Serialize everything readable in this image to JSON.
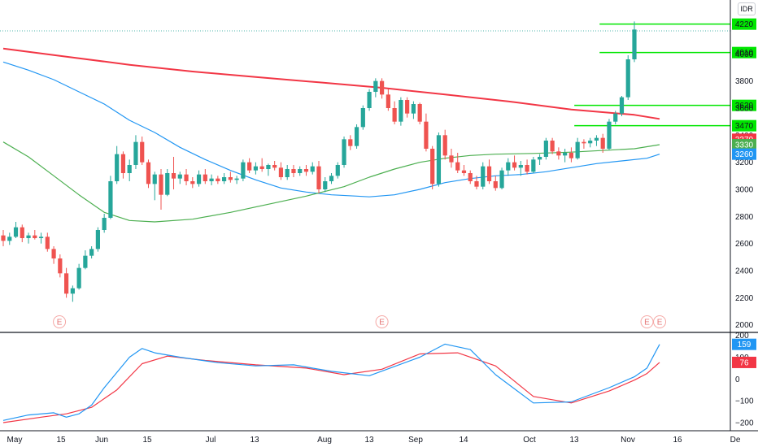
{
  "currency": "IDR",
  "colors": {
    "up": "#26a69a",
    "down": "#ef5350",
    "ma_long": "#f23645",
    "ma_mid": "#4caf50",
    "ma_short": "#2196f3",
    "levels": "#00e600",
    "osc_fast": "#2196f3",
    "osc_slow": "#f23645"
  },
  "chart_data": [
    {
      "type": "candlestick",
      "title": "",
      "ylim": [
        1950,
        4350
      ],
      "y_ticks": [
        2000,
        2200,
        2400,
        2600,
        2800,
        3000,
        3200,
        3400,
        3600,
        3800,
        4000
      ],
      "x_ticks": [
        "May",
        "15",
        "Jun",
        "15",
        "Jul",
        "13",
        "Aug",
        "13",
        "Sep",
        "14",
        "Oct",
        "13",
        "Nov",
        "16",
        "De"
      ],
      "candles": [
        [
          2660,
          2700,
          2580,
          2620
        ],
        [
          2620,
          2680,
          2590,
          2650
        ],
        [
          2650,
          2760,
          2640,
          2720
        ],
        [
          2720,
          2740,
          2610,
          2640
        ],
        [
          2640,
          2680,
          2600,
          2660
        ],
        [
          2660,
          2700,
          2630,
          2640
        ],
        [
          2640,
          2680,
          2600,
          2650
        ],
        [
          2650,
          2680,
          2540,
          2560
        ],
        [
          2560,
          2580,
          2450,
          2490
        ],
        [
          2490,
          2520,
          2350,
          2380
        ],
        [
          2380,
          2420,
          2200,
          2230
        ],
        [
          2230,
          2290,
          2170,
          2270
        ],
        [
          2270,
          2450,
          2260,
          2420
        ],
        [
          2420,
          2550,
          2410,
          2510
        ],
        [
          2510,
          2580,
          2490,
          2560
        ],
        [
          2560,
          2720,
          2540,
          2700
        ],
        [
          2700,
          2820,
          2680,
          2790
        ],
        [
          2790,
          3100,
          2780,
          3060
        ],
        [
          3060,
          3320,
          3040,
          3260
        ],
        [
          3260,
          3280,
          3080,
          3120
        ],
        [
          3120,
          3220,
          3060,
          3180
        ],
        [
          3180,
          3400,
          3150,
          3350
        ],
        [
          3350,
          3390,
          3180,
          3200
        ],
        [
          3200,
          3220,
          3010,
          3040
        ],
        [
          3040,
          3130,
          2920,
          3110
        ],
        [
          3110,
          3150,
          2850,
          2960
        ],
        [
          2960,
          3150,
          2950,
          3120
        ],
        [
          3120,
          3240,
          3000,
          3080
        ],
        [
          3080,
          3130,
          3040,
          3110
        ],
        [
          3110,
          3150,
          3030,
          3060
        ],
        [
          3060,
          3090,
          3010,
          3040
        ],
        [
          3040,
          3140,
          3020,
          3110
        ],
        [
          3110,
          3150,
          3040,
          3060
        ],
        [
          3060,
          3110,
          3030,
          3080
        ],
        [
          3080,
          3100,
          3040,
          3060
        ],
        [
          3060,
          3120,
          3040,
          3090
        ],
        [
          3090,
          3130,
          3050,
          3070
        ],
        [
          3070,
          3100,
          3040,
          3080
        ],
        [
          3080,
          3220,
          3060,
          3200
        ],
        [
          3200,
          3230,
          3120,
          3140
        ],
        [
          3140,
          3200,
          3110,
          3170
        ],
        [
          3170,
          3230,
          3130,
          3150
        ],
        [
          3150,
          3190,
          3100,
          3180
        ],
        [
          3180,
          3210,
          3140,
          3160
        ],
        [
          3160,
          3200,
          3070,
          3090
        ],
        [
          3090,
          3180,
          3070,
          3150
        ],
        [
          3150,
          3180,
          3090,
          3120
        ],
        [
          3120,
          3170,
          3100,
          3150
        ],
        [
          3150,
          3180,
          3100,
          3130
        ],
        [
          3130,
          3200,
          3110,
          3170
        ],
        [
          3170,
          3210,
          2970,
          3000
        ],
        [
          3000,
          3090,
          2980,
          3060
        ],
        [
          3060,
          3120,
          3040,
          3100
        ],
        [
          3100,
          3200,
          3080,
          3180
        ],
        [
          3180,
          3390,
          3160,
          3370
        ],
        [
          3370,
          3400,
          3290,
          3320
        ],
        [
          3320,
          3480,
          3300,
          3460
        ],
        [
          3460,
          3620,
          3440,
          3600
        ],
        [
          3600,
          3740,
          3580,
          3720
        ],
        [
          3720,
          3820,
          3680,
          3800
        ],
        [
          3800,
          3820,
          3670,
          3700
        ],
        [
          3700,
          3740,
          3580,
          3600
        ],
        [
          3600,
          3650,
          3480,
          3500
        ],
        [
          3500,
          3680,
          3470,
          3660
        ],
        [
          3660,
          3680,
          3530,
          3560
        ],
        [
          3560,
          3650,
          3520,
          3630
        ],
        [
          3630,
          3640,
          3480,
          3500
        ],
        [
          3500,
          3560,
          3280,
          3300
        ],
        [
          3300,
          3320,
          3000,
          3040
        ],
        [
          3040,
          3420,
          3020,
          3400
        ],
        [
          3400,
          3440,
          3220,
          3250
        ],
        [
          3250,
          3300,
          3160,
          3200
        ],
        [
          3200,
          3270,
          3120,
          3140
        ],
        [
          3140,
          3180,
          3100,
          3120
        ],
        [
          3120,
          3140,
          3040,
          3060
        ],
        [
          3060,
          3100,
          3000,
          3020
        ],
        [
          3020,
          3200,
          3000,
          3170
        ],
        [
          3170,
          3220,
          3040,
          3060
        ],
        [
          3060,
          3100,
          2990,
          3010
        ],
        [
          3010,
          3160,
          3000,
          3140
        ],
        [
          3140,
          3230,
          3100,
          3200
        ],
        [
          3200,
          3250,
          3140,
          3160
        ],
        [
          3160,
          3210,
          3100,
          3180
        ],
        [
          3180,
          3220,
          3110,
          3130
        ],
        [
          3130,
          3240,
          3120,
          3220
        ],
        [
          3220,
          3260,
          3180,
          3240
        ],
        [
          3240,
          3380,
          3220,
          3360
        ],
        [
          3360,
          3380,
          3260,
          3280
        ],
        [
          3280,
          3310,
          3220,
          3250
        ],
        [
          3250,
          3300,
          3200,
          3270
        ],
        [
          3270,
          3310,
          3200,
          3230
        ],
        [
          3230,
          3380,
          3220,
          3350
        ],
        [
          3350,
          3370,
          3300,
          3340
        ],
        [
          3340,
          3380,
          3310,
          3360
        ],
        [
          3360,
          3400,
          3320,
          3380
        ],
        [
          3380,
          3410,
          3270,
          3300
        ],
        [
          3300,
          3520,
          3290,
          3500
        ],
        [
          3500,
          3580,
          3480,
          3560
        ],
        [
          3560,
          3690,
          3540,
          3680
        ],
        [
          3680,
          3990,
          3660,
          3960
        ],
        [
          3960,
          4240,
          3940,
          4180
        ]
      ],
      "ma_long": [
        [
          0,
          4040
        ],
        [
          10,
          3980
        ],
        [
          20,
          3920
        ],
        [
          30,
          3870
        ],
        [
          40,
          3830
        ],
        [
          50,
          3790
        ],
        [
          60,
          3750
        ],
        [
          70,
          3700
        ],
        [
          80,
          3650
        ],
        [
          90,
          3590
        ],
        [
          100,
          3550
        ],
        [
          104,
          3520
        ]
      ],
      "ma_mid": [
        [
          0,
          3350
        ],
        [
          4,
          3240
        ],
        [
          8,
          3100
        ],
        [
          12,
          2960
        ],
        [
          16,
          2830
        ],
        [
          20,
          2770
        ],
        [
          24,
          2760
        ],
        [
          30,
          2780
        ],
        [
          36,
          2830
        ],
        [
          42,
          2890
        ],
        [
          48,
          2950
        ],
        [
          54,
          3020
        ],
        [
          58,
          3090
        ],
        [
          62,
          3150
        ],
        [
          66,
          3200
        ],
        [
          70,
          3230
        ],
        [
          74,
          3250
        ],
        [
          78,
          3260
        ],
        [
          84,
          3265
        ],
        [
          90,
          3275
        ],
        [
          96,
          3290
        ],
        [
          100,
          3300
        ],
        [
          104,
          3330
        ]
      ],
      "ma_short": [
        [
          0,
          3940
        ],
        [
          4,
          3880
        ],
        [
          8,
          3810
        ],
        [
          12,
          3720
        ],
        [
          16,
          3630
        ],
        [
          20,
          3510
        ],
        [
          24,
          3420
        ],
        [
          28,
          3310
        ],
        [
          32,
          3220
        ],
        [
          36,
          3140
        ],
        [
          40,
          3070
        ],
        [
          44,
          3010
        ],
        [
          48,
          2980
        ],
        [
          52,
          2960
        ],
        [
          56,
          2950
        ],
        [
          58,
          2945
        ],
        [
          62,
          2960
        ],
        [
          66,
          3000
        ],
        [
          70,
          3050
        ],
        [
          74,
          3080
        ],
        [
          78,
          3100
        ],
        [
          82,
          3110
        ],
        [
          86,
          3130
        ],
        [
          90,
          3160
        ],
        [
          94,
          3190
        ],
        [
          98,
          3210
        ],
        [
          102,
          3230
        ],
        [
          104,
          3260
        ]
      ],
      "levels": [
        {
          "price": 4220,
          "label": "4220",
          "from": 95
        },
        {
          "price": 4010,
          "label": "4010",
          "from": 95
        },
        {
          "price": 3620,
          "label": "3620",
          "from": 91
        },
        {
          "price": 3470,
          "label": "3470",
          "from": 91
        }
      ],
      "last_price_line": 4170,
      "price_badges": [
        {
          "price": 3370,
          "label": "3370",
          "color": "#f23645"
        },
        {
          "price": 3330,
          "label": "3330",
          "color": "#4caf50"
        },
        {
          "price": 3260,
          "label": "3260",
          "color": "#2196f3"
        }
      ],
      "event_markers": [
        {
          "index": 8,
          "label": "E"
        },
        {
          "index": 60,
          "label": "E"
        },
        {
          "index": 102,
          "label": "E"
        },
        {
          "index": 104,
          "label": "E"
        }
      ]
    },
    {
      "type": "line",
      "title": "",
      "ylim": [
        -230,
        210
      ],
      "y_ticks": [
        200,
        100,
        0,
        -100,
        -200
      ],
      "series": [
        {
          "color": "#2196f3",
          "values": [
            [
              0,
              -190
            ],
            [
              4,
              -165
            ],
            [
              8,
              -155
            ],
            [
              10,
              -175
            ],
            [
              12,
              -160
            ],
            [
              14,
              -120
            ],
            [
              16,
              -40
            ],
            [
              18,
              30
            ],
            [
              20,
              100
            ],
            [
              22,
              140
            ],
            [
              24,
              120
            ],
            [
              28,
              100
            ],
            [
              34,
              75
            ],
            [
              40,
              60
            ],
            [
              46,
              65
            ],
            [
              52,
              35
            ],
            [
              58,
              15
            ],
            [
              66,
              100
            ],
            [
              70,
              160
            ],
            [
              74,
              135
            ],
            [
              78,
              20
            ],
            [
              84,
              -110
            ],
            [
              90,
              -105
            ],
            [
              96,
              -40
            ],
            [
              100,
              10
            ],
            [
              102,
              50
            ],
            [
              104,
              159
            ]
          ]
        },
        {
          "color": "#f23645",
          "values": [
            [
              0,
              -200
            ],
            [
              6,
              -175
            ],
            [
              10,
              -160
            ],
            [
              14,
              -130
            ],
            [
              18,
              -50
            ],
            [
              22,
              70
            ],
            [
              26,
              105
            ],
            [
              32,
              85
            ],
            [
              40,
              65
            ],
            [
              48,
              50
            ],
            [
              54,
              20
            ],
            [
              60,
              45
            ],
            [
              66,
              115
            ],
            [
              72,
              120
            ],
            [
              78,
              60
            ],
            [
              84,
              -80
            ],
            [
              90,
              -110
            ],
            [
              96,
              -55
            ],
            [
              100,
              -5
            ],
            [
              102,
              25
            ],
            [
              104,
              76
            ]
          ]
        }
      ],
      "value_badges": [
        {
          "value": 159,
          "label": "159",
          "color": "#2196f3"
        },
        {
          "value": 76,
          "label": "76",
          "color": "#f23645"
        }
      ]
    }
  ]
}
